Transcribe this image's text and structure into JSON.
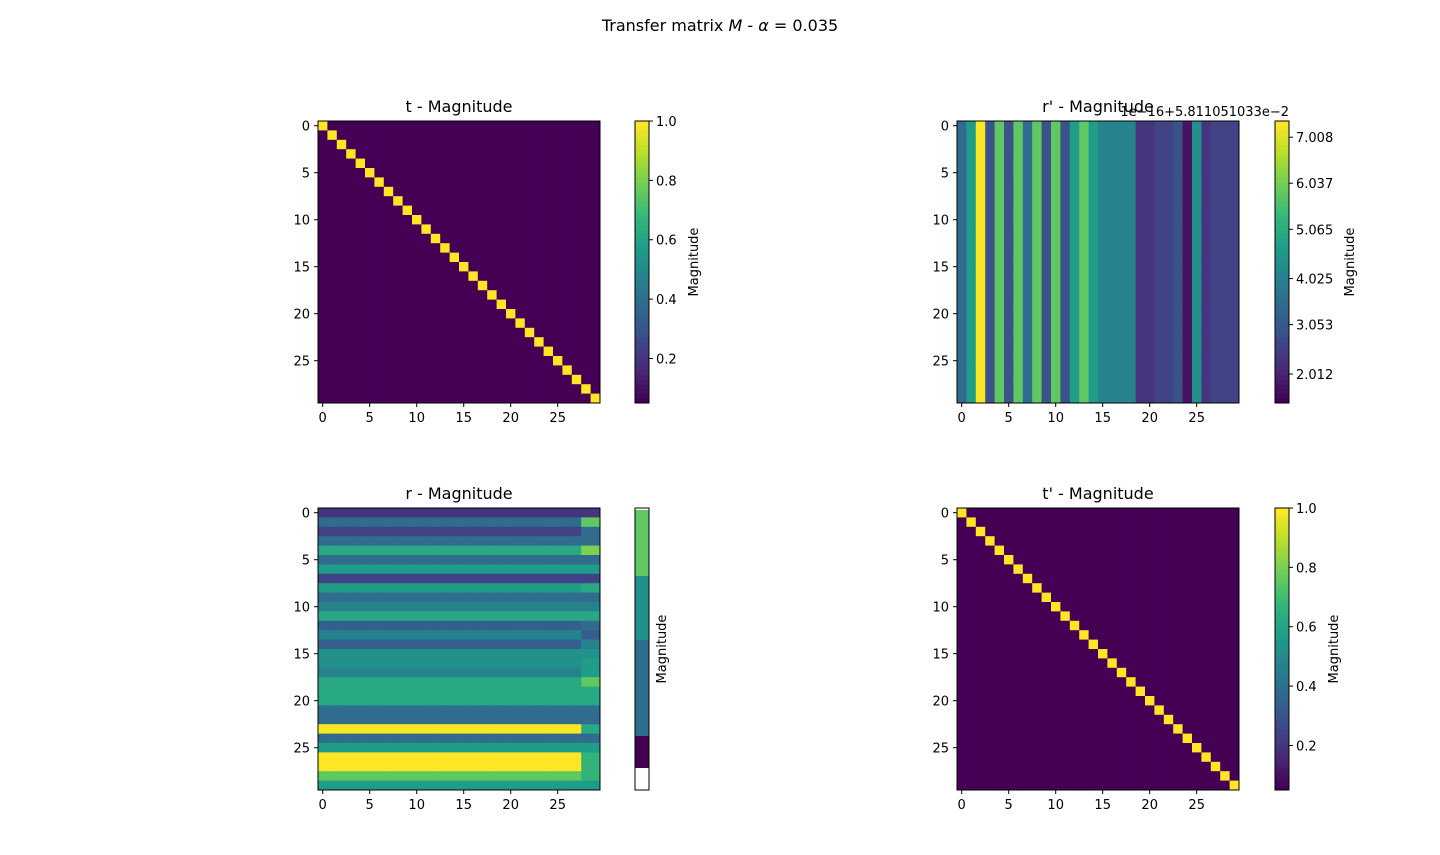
{
  "figure": {
    "title": "Transfer matrix M - α = 0.035",
    "title_prefix": "Transfer matrix ",
    "title_M": "M",
    "title_mid": " - ",
    "title_alpha": "α",
    "title_value": " = 0.035"
  },
  "chart_data": [
    {
      "id": "t",
      "type": "heatmap",
      "title": "t - Magnitude",
      "size": 30,
      "pattern": "identity",
      "xticks": [
        "0",
        "5",
        "10",
        "15",
        "20",
        "25"
      ],
      "yticks": [
        "0",
        "5",
        "10",
        "15",
        "20",
        "25"
      ],
      "colorbar": {
        "label": "Magnitude",
        "ticks": [
          "0.2",
          "0.4",
          "0.6",
          "0.8",
          "1.0"
        ],
        "range": [
          0.05,
          1.0
        ],
        "tick_values": [
          0.2,
          0.4,
          0.6,
          0.8,
          1.0
        ],
        "offset": ""
      }
    },
    {
      "id": "r_prime",
      "type": "heatmap",
      "title": "r' - Magnitude",
      "size": 30,
      "pattern": "columns",
      "column_levels": [
        0.35,
        0.55,
        1.0,
        0.25,
        0.75,
        0.25,
        0.75,
        0.35,
        0.75,
        0.25,
        0.75,
        0.25,
        0.55,
        0.75,
        0.55,
        0.45,
        0.45,
        0.45,
        0.45,
        0.15,
        0.15,
        0.2,
        0.2,
        0.25,
        0.05,
        0.5,
        0.15,
        0.2,
        0.2,
        0.2
      ],
      "xticks": [
        "0",
        "5",
        "10",
        "15",
        "20",
        "25"
      ],
      "yticks": [
        "0",
        "5",
        "10",
        "15",
        "20",
        "25"
      ],
      "colorbar": {
        "label": "Magnitude",
        "ticks": [
          "2.012",
          "3.053",
          "4.025",
          "5.065",
          "6.037",
          "7.008"
        ],
        "range": [
          1.4,
          7.35
        ],
        "tick_values": [
          2.012,
          3.053,
          4.025,
          5.065,
          6.037,
          7.008
        ],
        "offset": "1e−16+5.811051033e−2"
      }
    },
    {
      "id": "r",
      "type": "heatmap",
      "title": "r - Magnitude",
      "size": 30,
      "pattern": "rows",
      "row_levels": [
        0.15,
        0.35,
        0.2,
        0.35,
        0.6,
        0.35,
        0.55,
        0.2,
        0.55,
        0.35,
        0.45,
        0.6,
        0.3,
        0.45,
        0.3,
        0.5,
        0.5,
        0.45,
        0.6,
        0.6,
        0.6,
        0.35,
        0.35,
        1.0,
        0.35,
        0.55,
        1.0,
        1.0,
        0.75,
        0.55
      ],
      "last_col_levels": [
        0.15,
        0.75,
        0.35,
        0.35,
        0.8,
        0.35,
        0.55,
        0.2,
        0.6,
        0.35,
        0.45,
        0.6,
        0.35,
        0.3,
        0.45,
        0.5,
        0.55,
        0.55,
        0.75,
        0.6,
        0.6,
        0.35,
        0.35,
        0.6,
        0.35,
        0.55,
        0.65,
        0.65,
        0.65,
        0.55
      ],
      "xticks": [
        "0",
        "5",
        "10",
        "15",
        "20",
        "25"
      ],
      "yticks": [
        "0",
        "5",
        "10",
        "15",
        "20",
        "25"
      ],
      "colorbar": {
        "label": "Magnitude",
        "ticks": [],
        "discrete": true,
        "bands": [
          "#ffffff",
          "#440154",
          "#2d6f8e",
          "#2d6f8e",
          "#21918c",
          "#5ec962"
        ],
        "offset": ""
      }
    },
    {
      "id": "t_prime",
      "type": "heatmap",
      "title": "t' - Magnitude",
      "size": 30,
      "pattern": "identity",
      "xticks": [
        "0",
        "5",
        "10",
        "15",
        "20",
        "25"
      ],
      "yticks": [
        "0",
        "5",
        "10",
        "15",
        "20",
        "25"
      ],
      "colorbar": {
        "label": "Magnitude",
        "ticks": [
          "0.2",
          "0.4",
          "0.6",
          "0.8",
          "1.0"
        ],
        "range": [
          0.05,
          1.0
        ],
        "tick_values": [
          0.2,
          0.4,
          0.6,
          0.8,
          1.0
        ],
        "offset": ""
      }
    }
  ]
}
